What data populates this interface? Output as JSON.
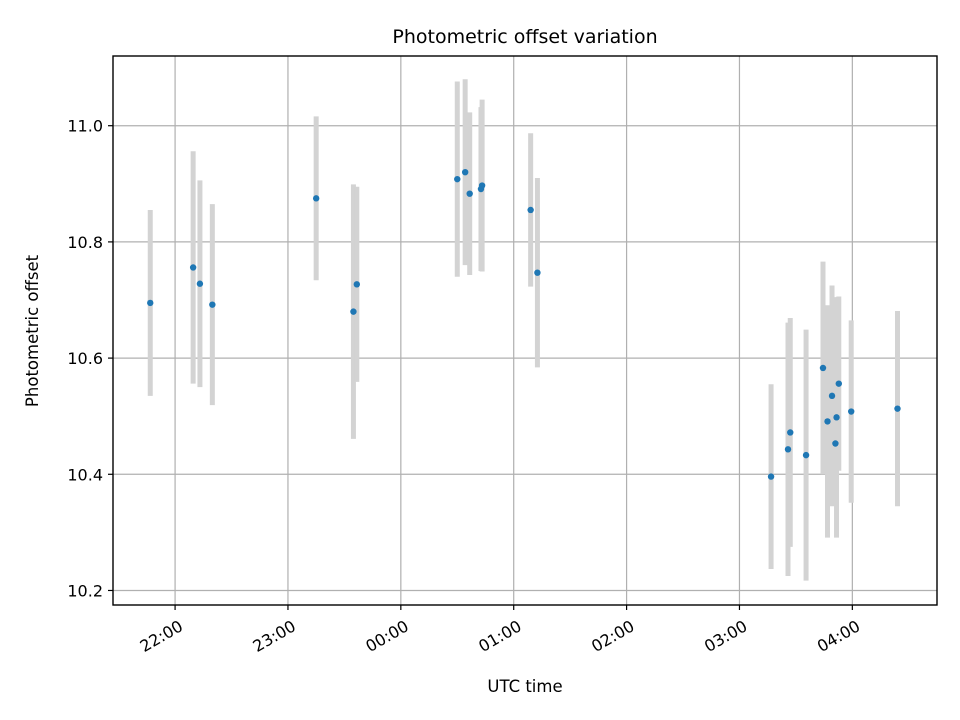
{
  "chart_data": {
    "type": "scatter",
    "title": "Photometric offset variation",
    "xlabel": "UTC time",
    "ylabel": "Photometric offset",
    "x_unit": "UTC hours since 00:00 (negative = previous day)",
    "xlim": [
      -2.55,
      4.75
    ],
    "ylim": [
      10.175,
      11.12
    ],
    "x_ticks": [
      {
        "value": -2,
        "label": "22:00"
      },
      {
        "value": -1,
        "label": "23:00"
      },
      {
        "value": 0,
        "label": "00:00"
      },
      {
        "value": 1,
        "label": "01:00"
      },
      {
        "value": 2,
        "label": "02:00"
      },
      {
        "value": 3,
        "label": "03:00"
      },
      {
        "value": 4,
        "label": "04:00"
      }
    ],
    "y_ticks": [
      {
        "value": 10.2,
        "label": "10.2"
      },
      {
        "value": 10.4,
        "label": "10.4"
      },
      {
        "value": 10.6,
        "label": "10.6"
      },
      {
        "value": 10.8,
        "label": "10.8"
      },
      {
        "value": 11.0,
        "label": "11.0"
      }
    ],
    "grid": true,
    "marker_color": "#1f77b4",
    "errorbar_color": "#d3d3d3",
    "points": [
      {
        "x": -2.22,
        "y": 10.695,
        "yerr": 0.16
      },
      {
        "x": -1.84,
        "y": 10.756,
        "yerr": 0.2
      },
      {
        "x": -1.78,
        "y": 10.728,
        "yerr": 0.178
      },
      {
        "x": -1.67,
        "y": 10.692,
        "yerr": 0.173
      },
      {
        "x": -0.75,
        "y": 10.875,
        "yerr": 0.141
      },
      {
        "x": -0.42,
        "y": 10.68,
        "yerr": 0.219
      },
      {
        "x": -0.39,
        "y": 10.727,
        "yerr": 0.168
      },
      {
        "x": 0.5,
        "y": 10.908,
        "yerr": 0.168
      },
      {
        "x": 0.57,
        "y": 10.92,
        "yerr": 0.16
      },
      {
        "x": 0.61,
        "y": 10.883,
        "yerr": 0.14
      },
      {
        "x": 0.71,
        "y": 10.891,
        "yerr": 0.141
      },
      {
        "x": 0.72,
        "y": 10.897,
        "yerr": 0.148
      },
      {
        "x": 1.15,
        "y": 10.855,
        "yerr": 0.132
      },
      {
        "x": 1.21,
        "y": 10.747,
        "yerr": 0.163
      },
      {
        "x": 3.28,
        "y": 10.396,
        "yerr": 0.159
      },
      {
        "x": 3.43,
        "y": 10.443,
        "yerr": 0.218
      },
      {
        "x": 3.45,
        "y": 10.472,
        "yerr": 0.197
      },
      {
        "x": 3.59,
        "y": 10.433,
        "yerr": 0.216
      },
      {
        "x": 3.74,
        "y": 10.583,
        "yerr": 0.183
      },
      {
        "x": 3.78,
        "y": 10.491,
        "yerr": 0.2
      },
      {
        "x": 3.82,
        "y": 10.535,
        "yerr": 0.19
      },
      {
        "x": 3.85,
        "y": 10.453,
        "yerr": 0.105
      },
      {
        "x": 3.86,
        "y": 10.498,
        "yerr": 0.207
      },
      {
        "x": 3.88,
        "y": 10.556,
        "yerr": 0.15
      },
      {
        "x": 3.99,
        "y": 10.508,
        "yerr": 0.157
      },
      {
        "x": 4.4,
        "y": 10.513,
        "yerr": 0.168
      }
    ]
  }
}
